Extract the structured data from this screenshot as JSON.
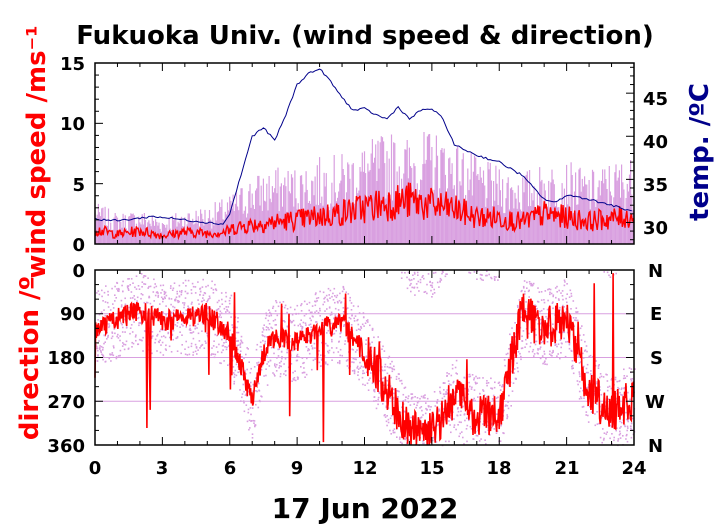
{
  "chart_data": [
    {
      "type": "line",
      "title": "Fukuoka Univ. (wind speed & direction)",
      "ylabel": "wind speed /ms⁻¹",
      "y2label": "temp. /ºC",
      "xlim": [
        0,
        24
      ],
      "ylim": [
        0,
        15
      ],
      "y2lim": [
        27.5,
        48.5
      ],
      "yticks": [
        "0",
        "5",
        "10",
        "15"
      ],
      "y2ticks": [
        "30",
        "35",
        "40",
        "45"
      ],
      "colors": {
        "mean": "#ff0000",
        "gust": "#d9a0e0",
        "temp": "#00008b"
      },
      "series": [
        {
          "id": "mean_wind_speed",
          "x": [
            0,
            1,
            2,
            3,
            4,
            5,
            5.8,
            6.3,
            7,
            8,
            9,
            10,
            11,
            12,
            13,
            14,
            15,
            16,
            17,
            18,
            19,
            20,
            21,
            22,
            23,
            24
          ],
          "values": [
            1.2,
            0.8,
            1.1,
            0.7,
            1.0,
            0.9,
            1.0,
            1.4,
            1.6,
            1.8,
            2.0,
            2.3,
            2.6,
            3.0,
            3.4,
            3.6,
            3.2,
            2.9,
            2.2,
            2.2,
            1.8,
            2.5,
            2.2,
            1.9,
            2.1,
            2.3
          ]
        },
        {
          "id": "gust_wind_speed",
          "x": [
            0,
            1,
            2,
            3,
            4,
            5,
            6,
            7,
            8,
            9,
            10,
            11,
            12,
            13,
            14,
            15,
            16,
            17,
            18,
            19,
            20,
            21,
            22,
            23,
            24
          ],
          "values": [
            2.4,
            1.8,
            2.0,
            1.6,
            2.0,
            2.2,
            2.8,
            4.0,
            4.4,
            4.5,
            5.0,
            5.2,
            5.8,
            6.5,
            6.2,
            6.6,
            6.0,
            5.0,
            4.4,
            4.2,
            4.6,
            4.8,
            4.2,
            4.8,
            5.0
          ]
        },
        {
          "id": "temperature",
          "axis": "right",
          "x": [
            0,
            1,
            2,
            2.5,
            3,
            4,
            5,
            5.7,
            6,
            6.5,
            7,
            7.5,
            8,
            8.5,
            9,
            9.5,
            10,
            10.3,
            11,
            11.5,
            12,
            12.5,
            13,
            13.5,
            14,
            14.5,
            15,
            15.5,
            16,
            17,
            18,
            19,
            20,
            20.5,
            21,
            22,
            23,
            24
          ],
          "values": [
            30.4,
            30.2,
            30.5,
            30.7,
            30.6,
            30.3,
            30.0,
            29.8,
            31.0,
            35.5,
            40.0,
            41.0,
            39.5,
            42.5,
            46.0,
            47.3,
            47.8,
            47.0,
            44.5,
            43.0,
            43.2,
            42.5,
            42.0,
            43.4,
            42.0,
            43.0,
            43.2,
            42.0,
            39.0,
            37.8,
            37.0,
            35.5,
            32.7,
            32.3,
            33.2,
            32.7,
            32.0,
            31.2
          ]
        }
      ]
    },
    {
      "type": "scatter",
      "ylabel": "direction /º",
      "xlabel": "17 Jun 2022",
      "xlim": [
        0,
        24
      ],
      "ylim": [
        360,
        0
      ],
      "yticks": [
        "0",
        "90",
        "180",
        "270",
        "360"
      ],
      "y2ticks": [
        "N",
        "E",
        "S",
        "W",
        "N"
      ],
      "xticks": [
        "0",
        "3",
        "6",
        "9",
        "12",
        "15",
        "18",
        "21",
        "24"
      ],
      "colors": {
        "mean": "#ff0000",
        "gust": "#d9a0e0"
      },
      "series": [
        {
          "id": "direction",
          "x": [
            0,
            1,
            2,
            3,
            4,
            5,
            6,
            6.5,
            7,
            7.5,
            8,
            9,
            10,
            11,
            12,
            12.5,
            13,
            14,
            15,
            15.5,
            16,
            17,
            18,
            19,
            20,
            21,
            22,
            23,
            24
          ],
          "values": [
            120,
            100,
            85,
            105,
            95,
            90,
            130,
            200,
            270,
            170,
            140,
            150,
            120,
            110,
            170,
            200,
            250,
            330,
            335,
            300,
            260,
            300,
            300,
            90,
            120,
            95,
            250,
            300,
            260
          ]
        }
      ]
    }
  ]
}
